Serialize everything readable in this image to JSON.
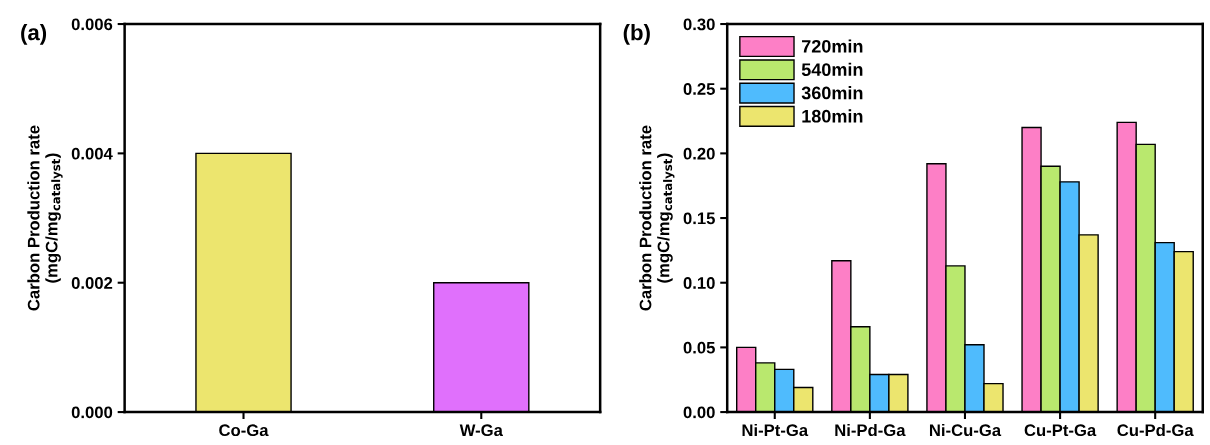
{
  "chart_data": [
    {
      "type": "bar",
      "annotations": [
        "(a)"
      ],
      "ylabel": "Carbon Production rate\n(mgC/mg$_{catalyst}$)",
      "categories": [
        "Co-Ga",
        "W-Ga"
      ],
      "values": [
        0.004,
        0.002
      ],
      "colors": [
        "#ece56e",
        "#e070fc"
      ],
      "ylim": [
        0,
        0.006
      ],
      "yticks": [
        {
          "value": 0,
          "label": "0.000"
        },
        {
          "value": 0.002,
          "label": "0.002"
        },
        {
          "value": 0.004,
          "label": "0.004"
        },
        {
          "value": 0.006,
          "label": "0.006"
        }
      ],
      "grid": false,
      "legend": false
    },
    {
      "type": "bar",
      "annotations": [
        "(b)"
      ],
      "ylabel": "Carbon Production rate\n(mgC/mg$_{catalyst}$)",
      "categories": [
        "Ni-Pt-Ga",
        "Ni-Pd-Ga",
        "Ni-Cu-Ga",
        "Cu-Pt-Ga",
        "Cu-Pd-Ga"
      ],
      "series": [
        {
          "name": "720min",
          "color": "#fd7fc6",
          "values": [
            0.05,
            0.117,
            0.192,
            0.22,
            0.224
          ]
        },
        {
          "name": "540min",
          "color": "#b9e86e",
          "values": [
            0.038,
            0.066,
            0.113,
            0.19,
            0.207
          ]
        },
        {
          "name": "360min",
          "color": "#4fbbfd",
          "values": [
            0.033,
            0.029,
            0.052,
            0.178,
            0.131
          ]
        },
        {
          "name": "180min",
          "color": "#ece56e",
          "values": [
            0.019,
            0.029,
            0.022,
            0.137,
            0.124
          ]
        }
      ],
      "ylim": [
        0,
        0.3
      ],
      "yticks": [
        {
          "value": 0,
          "label": "0.00"
        },
        {
          "value": 0.05,
          "label": "0.05"
        },
        {
          "value": 0.1,
          "label": "0.10"
        },
        {
          "value": 0.15,
          "label": "0.15"
        },
        {
          "value": 0.2,
          "label": "0.20"
        },
        {
          "value": 0.25,
          "label": "0.25"
        },
        {
          "value": 0.3,
          "label": "0.30"
        }
      ],
      "grid": false,
      "legend": "top left"
    }
  ]
}
